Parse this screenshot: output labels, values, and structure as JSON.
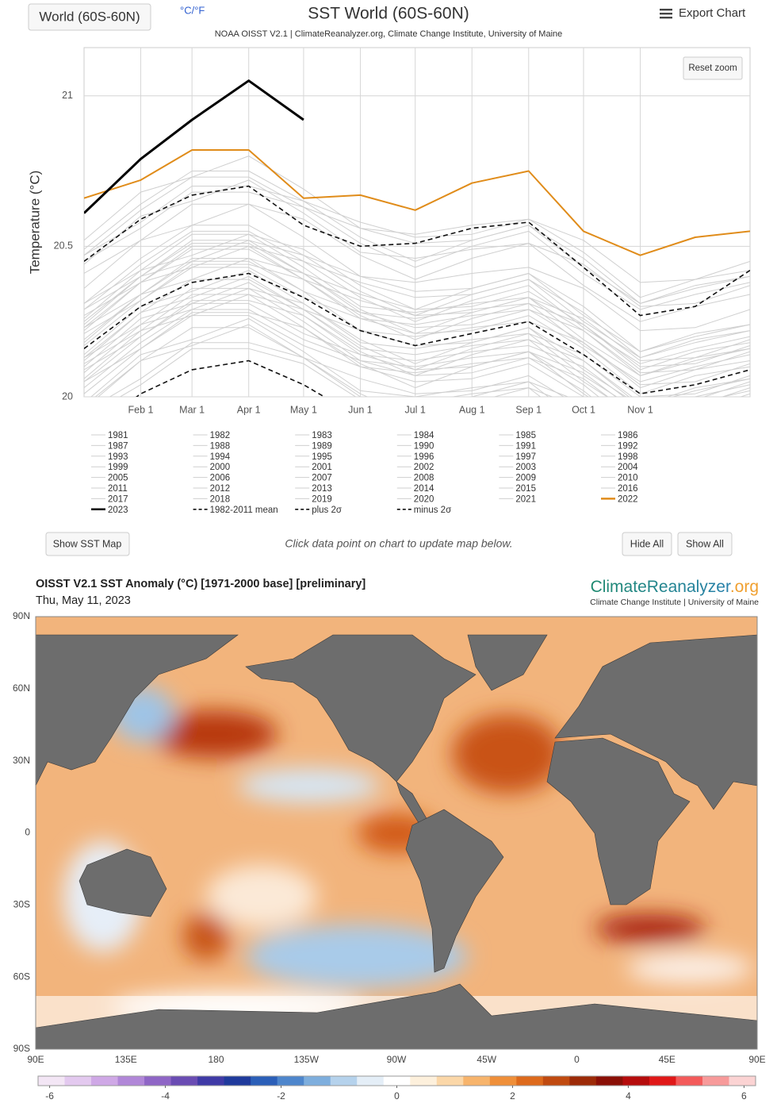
{
  "header": {
    "region_button": "World (60S-60N)",
    "units_toggle": "°C/°F",
    "export": "Export Chart",
    "reset_zoom": "Reset zoom"
  },
  "chart_data": {
    "type": "line",
    "title": "SST World (60S-60N)",
    "subtitle": "NOAA OISST V2.1 | ClimateReanalyzer.org, Climate Change Institute, University of Maine",
    "y_label": "Temperature (°C)",
    "x": [
      1,
      32,
      60,
      91,
      121,
      152,
      182,
      213,
      244,
      274,
      305,
      335,
      365
    ],
    "xlim": [
      1,
      365
    ],
    "xticks": [
      {
        "value": 32,
        "label": "Feb 1"
      },
      {
        "value": 60,
        "label": "Mar 1"
      },
      {
        "value": 91,
        "label": "Apr 1"
      },
      {
        "value": 121,
        "label": "May 1"
      },
      {
        "value": 152,
        "label": "Jun 1"
      },
      {
        "value": 182,
        "label": "Jul 1"
      },
      {
        "value": 213,
        "label": "Aug 1"
      },
      {
        "value": 244,
        "label": "Sep 1"
      },
      {
        "value": 274,
        "label": "Oct 1"
      },
      {
        "value": 305,
        "label": "Nov 1"
      }
    ],
    "ylim": [
      20,
      21.16
    ],
    "yticks": [
      20,
      20.5,
      21
    ],
    "grid": true,
    "series": [
      {
        "name": "1981",
        "color": "#cfcfcf",
        "values": [
          19.96,
          20.12,
          20.17,
          20.24,
          20.13,
          20.0,
          19.98,
          20.01,
          20.03,
          19.96,
          19.82,
          19.83,
          19.89
        ]
      },
      {
        "name": "1982",
        "color": "#cfcfcf",
        "values": [
          19.95,
          20.06,
          20.18,
          20.18,
          20.13,
          20.01,
          19.93,
          20.0,
          20.05,
          19.91,
          19.79,
          19.84,
          19.88
        ]
      },
      {
        "name": "1983",
        "color": "#cfcfcf",
        "values": [
          20.03,
          20.18,
          20.29,
          20.29,
          20.19,
          20.12,
          20.07,
          20.08,
          20.13,
          20.02,
          19.87,
          19.93,
          19.96
        ]
      },
      {
        "name": "1984",
        "color": "#cfcfcf",
        "values": [
          19.98,
          20.14,
          20.19,
          20.26,
          20.15,
          20.02,
          20.0,
          20.03,
          20.05,
          19.98,
          19.84,
          19.85,
          19.91
        ]
      },
      {
        "name": "1985",
        "color": "#cfcfcf",
        "values": [
          19.93,
          20.04,
          20.16,
          20.16,
          20.11,
          19.99,
          19.91,
          19.98,
          20.03,
          19.89,
          19.77,
          19.82,
          19.86
        ]
      },
      {
        "name": "1986",
        "color": "#cfcfcf",
        "values": [
          19.97,
          20.12,
          20.23,
          20.23,
          20.13,
          20.06,
          20.01,
          20.02,
          20.07,
          19.96,
          19.81,
          19.87,
          19.9
        ]
      },
      {
        "name": "1987",
        "color": "#cfcfcf",
        "values": [
          20.08,
          20.24,
          20.29,
          20.36,
          20.25,
          20.12,
          20.1,
          20.13,
          20.15,
          20.08,
          19.94,
          19.95,
          20.01
        ]
      },
      {
        "name": "1988",
        "color": "#cfcfcf",
        "values": [
          20.05,
          20.16,
          20.28,
          20.28,
          20.23,
          20.11,
          20.03,
          20.1,
          20.15,
          20.01,
          19.89,
          19.94,
          19.98
        ]
      },
      {
        "name": "1989",
        "color": "#cfcfcf",
        "values": [
          20.01,
          20.16,
          20.27,
          20.27,
          20.17,
          20.1,
          20.05,
          20.06,
          20.11,
          20.0,
          19.85,
          19.91,
          19.94
        ]
      },
      {
        "name": "1990",
        "color": "#cfcfcf",
        "values": [
          20.1,
          20.26,
          20.31,
          20.38,
          20.27,
          20.14,
          20.12,
          20.15,
          20.17,
          20.1,
          19.96,
          19.97,
          20.03
        ]
      },
      {
        "name": "1991",
        "color": "#cfcfcf",
        "values": [
          20.09,
          20.2,
          20.32,
          20.32,
          20.27,
          20.15,
          20.07,
          20.14,
          20.19,
          20.05,
          19.93,
          19.98,
          20.02
        ]
      },
      {
        "name": "1992",
        "color": "#cfcfcf",
        "values": [
          20.05,
          20.2,
          20.31,
          20.31,
          20.21,
          20.14,
          20.09,
          20.1,
          20.15,
          20.04,
          19.89,
          19.95,
          19.98
        ]
      },
      {
        "name": "1993",
        "color": "#cfcfcf",
        "values": [
          20.06,
          20.22,
          20.27,
          20.34,
          20.23,
          20.1,
          20.08,
          20.11,
          20.13,
          20.06,
          19.92,
          19.93,
          19.99
        ]
      },
      {
        "name": "1994",
        "color": "#cfcfcf",
        "values": [
          20.11,
          20.22,
          20.34,
          20.34,
          20.29,
          20.17,
          20.09,
          20.16,
          20.21,
          20.07,
          19.95,
          20.0,
          20.04
        ]
      },
      {
        "name": "1995",
        "color": "#cfcfcf",
        "values": [
          20.13,
          20.28,
          20.39,
          20.39,
          20.29,
          20.22,
          20.17,
          20.18,
          20.23,
          20.12,
          19.97,
          20.03,
          20.06
        ]
      },
      {
        "name": "1996",
        "color": "#cfcfcf",
        "values": [
          20.12,
          20.28,
          20.33,
          20.4,
          20.29,
          20.16,
          20.14,
          20.17,
          20.19,
          20.12,
          19.98,
          19.99,
          20.05
        ]
      },
      {
        "name": "1997",
        "color": "#cfcfcf",
        "values": [
          20.21,
          20.32,
          20.44,
          20.44,
          20.39,
          20.27,
          20.19,
          20.26,
          20.31,
          20.17,
          20.05,
          20.1,
          20.14
        ]
      },
      {
        "name": "1998",
        "color": "#cfcfcf",
        "values": [
          20.25,
          20.4,
          20.51,
          20.51,
          20.41,
          20.34,
          20.29,
          20.3,
          20.35,
          20.24,
          20.09,
          20.15,
          20.18
        ]
      },
      {
        "name": "1999",
        "color": "#cfcfcf",
        "values": [
          20.14,
          20.3,
          20.35,
          20.42,
          20.31,
          20.18,
          20.16,
          20.19,
          20.21,
          20.14,
          20.0,
          20.01,
          20.07
        ]
      },
      {
        "name": "2000",
        "color": "#cfcfcf",
        "values": [
          20.13,
          20.24,
          20.36,
          20.36,
          20.31,
          20.19,
          20.11,
          20.18,
          20.23,
          20.09,
          19.97,
          20.02,
          20.06
        ]
      },
      {
        "name": "2001",
        "color": "#cfcfcf",
        "values": [
          20.19,
          20.34,
          20.45,
          20.45,
          20.35,
          20.28,
          20.23,
          20.24,
          20.29,
          20.18,
          20.03,
          20.09,
          20.12
        ]
      },
      {
        "name": "2002",
        "color": "#cfcfcf",
        "values": [
          20.24,
          20.4,
          20.45,
          20.52,
          20.41,
          20.28,
          20.26,
          20.29,
          20.31,
          20.24,
          20.1,
          20.11,
          20.17
        ]
      },
      {
        "name": "2003",
        "color": "#cfcfcf",
        "values": [
          20.27,
          20.38,
          20.5,
          20.5,
          20.45,
          20.33,
          20.25,
          20.32,
          20.37,
          20.23,
          20.11,
          20.16,
          20.2
        ]
      },
      {
        "name": "2004",
        "color": "#cfcfcf",
        "values": [
          20.23,
          20.38,
          20.49,
          20.49,
          20.39,
          20.32,
          20.27,
          20.28,
          20.33,
          20.22,
          20.07,
          20.13,
          20.16
        ]
      },
      {
        "name": "2005",
        "color": "#cfcfcf",
        "values": [
          20.26,
          20.42,
          20.47,
          20.54,
          20.43,
          20.3,
          20.28,
          20.31,
          20.33,
          20.26,
          20.12,
          20.13,
          20.19
        ]
      },
      {
        "name": "2006",
        "color": "#cfcfcf",
        "values": [
          20.23,
          20.34,
          20.46,
          20.46,
          20.41,
          20.29,
          20.21,
          20.28,
          20.33,
          20.19,
          20.07,
          20.12,
          20.16
        ]
      },
      {
        "name": "2007",
        "color": "#cfcfcf",
        "values": [
          20.17,
          20.32,
          20.43,
          20.43,
          20.33,
          20.26,
          20.21,
          20.22,
          20.27,
          20.16,
          20.01,
          20.07,
          20.1
        ]
      },
      {
        "name": "2008",
        "color": "#cfcfcf",
        "values": [
          20.18,
          20.34,
          20.39,
          20.46,
          20.35,
          20.22,
          20.2,
          20.23,
          20.25,
          20.18,
          20.04,
          20.05,
          20.11
        ]
      },
      {
        "name": "2009",
        "color": "#cfcfcf",
        "values": [
          20.29,
          20.4,
          20.52,
          20.52,
          20.47,
          20.35,
          20.27,
          20.34,
          20.39,
          20.25,
          20.13,
          20.18,
          20.22
        ]
      },
      {
        "name": "2010",
        "color": "#cfcfcf",
        "values": [
          20.31,
          20.46,
          20.57,
          20.57,
          20.47,
          20.4,
          20.35,
          20.36,
          20.41,
          20.3,
          20.15,
          20.21,
          20.24
        ]
      },
      {
        "name": "2011",
        "color": "#cfcfcf",
        "values": [
          20.22,
          20.38,
          20.43,
          20.5,
          20.39,
          20.26,
          20.24,
          20.27,
          20.29,
          20.22,
          20.08,
          20.09,
          20.15
        ]
      },
      {
        "name": "2012",
        "color": "#cfcfcf",
        "values": [
          20.31,
          20.42,
          20.54,
          20.54,
          20.49,
          20.37,
          20.29,
          20.36,
          20.41,
          20.27,
          20.15,
          20.2,
          20.24
        ]
      },
      {
        "name": "2013",
        "color": "#cfcfcf",
        "values": [
          20.29,
          20.44,
          20.55,
          20.55,
          20.45,
          20.38,
          20.33,
          20.34,
          20.39,
          20.28,
          20.13,
          20.19,
          20.22
        ]
      },
      {
        "name": "2014",
        "color": "#cfcfcf",
        "values": [
          20.36,
          20.52,
          20.57,
          20.64,
          20.53,
          20.4,
          20.38,
          20.41,
          20.43,
          20.36,
          20.22,
          20.23,
          20.29
        ]
      },
      {
        "name": "2015",
        "color": "#cfcfcf",
        "values": [
          20.45,
          20.56,
          20.68,
          20.68,
          20.63,
          20.51,
          20.43,
          20.5,
          20.55,
          20.41,
          20.29,
          20.34,
          20.38
        ]
      },
      {
        "name": "2016",
        "color": "#cfcfcf",
        "values": [
          20.49,
          20.64,
          20.75,
          20.75,
          20.65,
          20.58,
          20.53,
          20.54,
          20.59,
          20.48,
          20.33,
          20.39,
          20.42
        ]
      },
      {
        "name": "2017",
        "color": "#cfcfcf",
        "values": [
          20.44,
          20.6,
          20.65,
          20.72,
          20.61,
          20.48,
          20.46,
          20.49,
          20.51,
          20.44,
          20.3,
          20.31,
          20.37
        ]
      },
      {
        "name": "2018",
        "color": "#cfcfcf",
        "values": [
          20.41,
          20.52,
          20.64,
          20.64,
          20.59,
          20.47,
          20.39,
          20.46,
          20.51,
          20.37,
          20.25,
          20.3,
          20.34
        ]
      },
      {
        "name": "2019",
        "color": "#cfcfcf",
        "values": [
          20.47,
          20.62,
          20.73,
          20.73,
          20.63,
          20.56,
          20.51,
          20.52,
          20.57,
          20.46,
          20.31,
          20.37,
          20.4
        ]
      },
      {
        "name": "2020",
        "color": "#cfcfcf",
        "values": [
          20.52,
          20.68,
          20.73,
          20.8,
          20.69,
          20.56,
          20.54,
          20.57,
          20.59,
          20.52,
          20.38,
          20.39,
          20.45
        ]
      },
      {
        "name": "2021",
        "color": "#cfcfcf",
        "values": [
          20.47,
          20.58,
          20.7,
          20.7,
          20.65,
          20.53,
          20.45,
          20.52,
          20.57,
          20.43,
          20.31,
          20.36,
          20.4
        ]
      },
      {
        "name": "2022",
        "color": "#e08c1a",
        "highlight": true,
        "values": [
          20.66,
          20.72,
          20.82,
          20.82,
          20.66,
          20.67,
          20.62,
          20.71,
          20.75,
          20.55,
          20.47,
          20.53,
          20.55
        ]
      },
      {
        "name": "2023",
        "color": "#000000",
        "highlight": true,
        "values": [
          20.61,
          20.79,
          20.92,
          21.05,
          20.92,
          null,
          null,
          null,
          null,
          null,
          null,
          null,
          null
        ]
      },
      {
        "name": "1982-2011 mean",
        "color": "#111111",
        "dashed": true,
        "values": [
          20.16,
          20.3,
          20.38,
          20.41,
          20.33,
          20.22,
          20.17,
          20.21,
          20.25,
          20.14,
          20.01,
          20.04,
          20.09
        ]
      },
      {
        "name": "plus 2σ",
        "color": "#111111",
        "dashed": true,
        "values": [
          20.45,
          20.59,
          20.67,
          20.7,
          20.57,
          20.5,
          20.51,
          20.56,
          20.58,
          20.43,
          20.27,
          20.3,
          20.42
        ]
      },
      {
        "name": "minus 2σ",
        "color": "#111111",
        "dashed": true,
        "values": [
          19.87,
          20.01,
          20.09,
          20.12,
          20.04,
          19.93,
          19.88,
          19.92,
          19.96,
          19.85,
          19.72,
          19.75,
          19.8
        ]
      }
    ]
  },
  "controls": {
    "show_map": "Show SST Map",
    "hint": "Click data point on chart to update map below.",
    "hide_all": "Hide All",
    "show_all": "Show All"
  },
  "map": {
    "title": "OISST V2.1 SST Anomaly (°C) [1971-2000 base] [preliminary]",
    "date": "Thu, May 11, 2023",
    "logo": {
      "main": "ClimateReanalyzer",
      "suffix": ".org"
    },
    "credit": "Climate Change Institute | University of Maine",
    "lat_labels": [
      "90N",
      "60N",
      "30N",
      "0",
      "30S",
      "60S",
      "90S"
    ],
    "lon_labels": [
      "90E",
      "135E",
      "180",
      "135W",
      "90W",
      "45W",
      "0",
      "45E",
      "90E"
    ],
    "colorbar": {
      "lim": [
        -6.2,
        6.2
      ],
      "ticks": [
        -6,
        -4,
        -2,
        0,
        2,
        4,
        6
      ],
      "colors": [
        "#f3e6f5",
        "#e3c9ef",
        "#cfa8e6",
        "#b187d8",
        "#8f66c6",
        "#6a4cb3",
        "#3f3aa6",
        "#1f3a9c",
        "#2b5fb8",
        "#4e86cc",
        "#7eaedd",
        "#b5d2ec",
        "#e4eef7",
        "#ffffff",
        "#fdf0dc",
        "#fbd7a8",
        "#f7b46c",
        "#ef8f39",
        "#dd6a1c",
        "#c04a10",
        "#9c2a08",
        "#8a0f06",
        "#b50c0c",
        "#e01818",
        "#f35a5a",
        "#f79a9a",
        "#fbd3d3"
      ]
    }
  }
}
